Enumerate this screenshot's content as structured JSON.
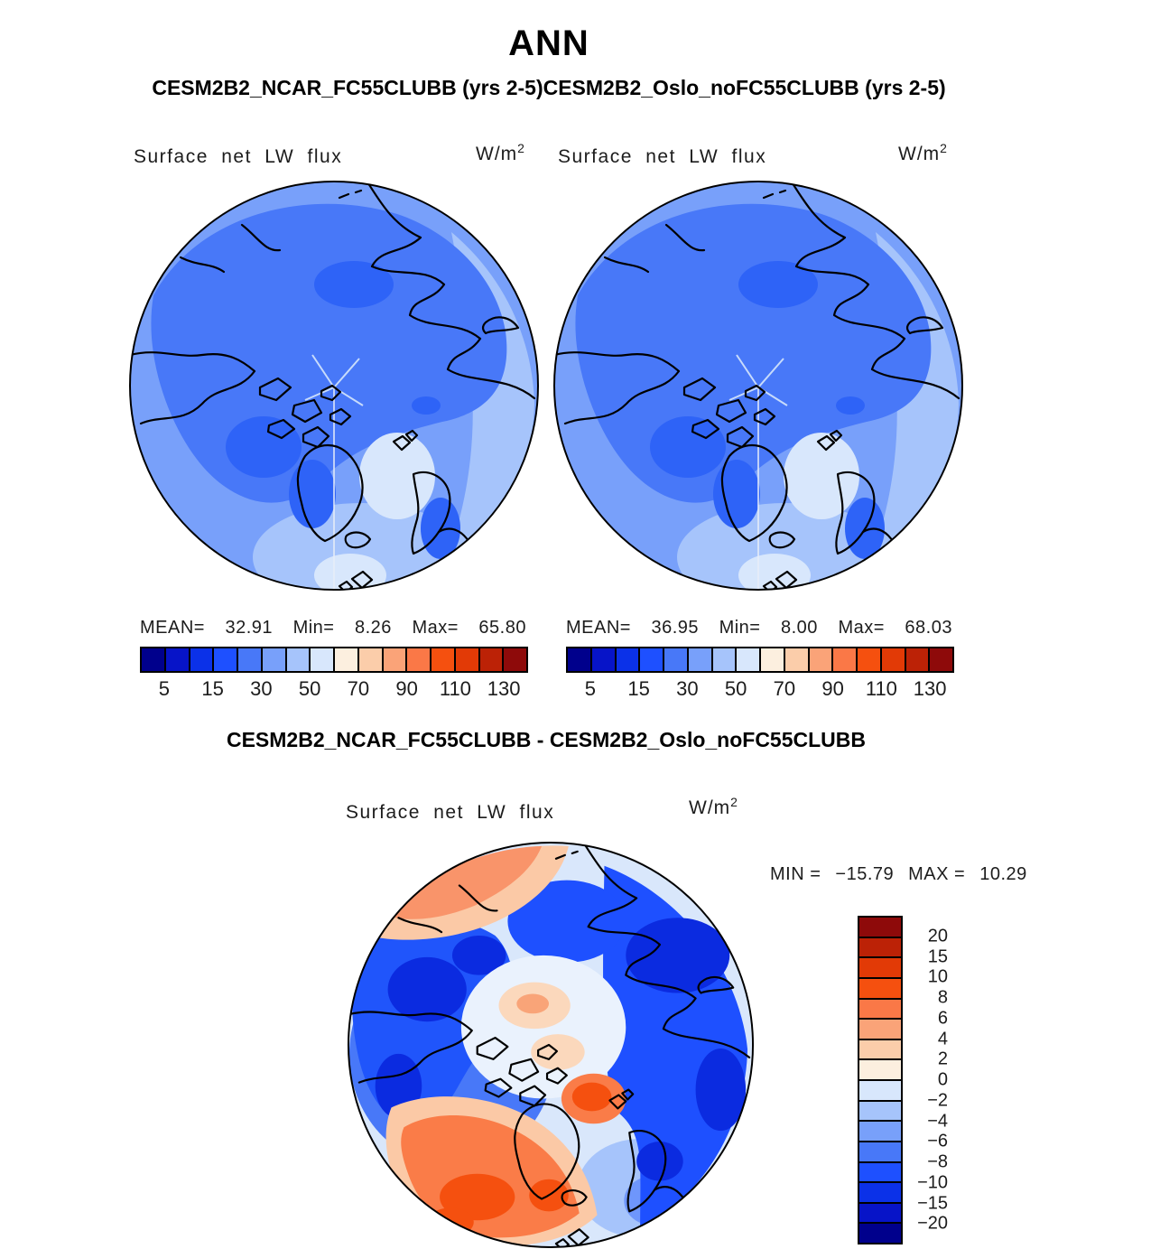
{
  "header": {
    "title": "ANN",
    "subtitle": "CESM2B2_NCAR_FC55CLUBB (yrs 2-5)CESM2B2_Oslo_noFC55CLUBB (yrs 2-5)",
    "diff_title": "CESM2B2_NCAR_FC55CLUBB - CESM2B2_Oslo_noFC55CLUBB"
  },
  "panel_left": {
    "field": "Surface net LW flux",
    "units_base": "W/m",
    "units_exp": "2",
    "mean_label": "MEAN=",
    "mean": "32.91",
    "min_label": "Min=",
    "min": "8.26",
    "max_label": "Max=",
    "max": "65.80"
  },
  "panel_right": {
    "field": "Surface net LW flux",
    "units_base": "W/m",
    "units_exp": "2",
    "mean_label": "MEAN=",
    "mean": "36.95",
    "min_label": "Min=",
    "min": "8.00",
    "max_label": "Max=",
    "max": "68.03"
  },
  "panel_diff": {
    "field": "Surface net LW flux",
    "units_base": "W/m",
    "units_exp": "2",
    "min_label": "MIN =",
    "min": "−15.79",
    "max_label": "MAX =",
    "max": "10.29"
  },
  "flux_scale": {
    "colors": [
      "#00008C",
      "#0714C8",
      "#0B31E8",
      "#1E50FF",
      "#4878F8",
      "#78A0FA",
      "#A6C4FB",
      "#D8E7FC",
      "#FCEFDF",
      "#FBCDAA",
      "#FAA378",
      "#FA7847",
      "#F5500F",
      "#E23A06",
      "#BC2206",
      "#8E0A0A"
    ],
    "tick_labels": [
      "5",
      "15",
      "30",
      "50",
      "70",
      "90",
      "110",
      "130"
    ],
    "tick_boundaries": [
      1,
      3,
      5,
      7,
      9,
      11,
      13,
      15
    ]
  },
  "diff_scale": {
    "colors": [
      "#8E0A0A",
      "#BC2206",
      "#E23A06",
      "#F5500F",
      "#FA7847",
      "#FAA378",
      "#FBCDAA",
      "#FCEFDF",
      "#D8E7FC",
      "#A6C4FB",
      "#78A0FA",
      "#4878F8",
      "#1E50FF",
      "#0B31E8",
      "#0714C8",
      "#00008C"
    ],
    "tick_labels": [
      "20",
      "15",
      "10",
      "8",
      "6",
      "4",
      "2",
      "0",
      "−2",
      "−4",
      "−6",
      "−8",
      "−10",
      "−15",
      "−20"
    ],
    "tick_boundaries": [
      1,
      2,
      3,
      4,
      5,
      6,
      7,
      8,
      9,
      10,
      11,
      12,
      13,
      14,
      15
    ]
  },
  "chart_data": [
    {
      "type": "heatmap",
      "subtype": "filled-contour-map",
      "projection": "north-polar-stereographic",
      "season": "ANN",
      "run": "CESM2B2_NCAR_FC55CLUBB (yrs 2-5)",
      "variable": "Surface net LW flux",
      "units": "W/m^2",
      "mean": 32.91,
      "min": 8.26,
      "max": 65.8,
      "colorbar_tick_labels": [
        5,
        15,
        30,
        50,
        70,
        90,
        110,
        130
      ],
      "n_color_segments": 16,
      "palette": "blue-to-red",
      "legend_position": "bottom"
    },
    {
      "type": "heatmap",
      "subtype": "filled-contour-map",
      "projection": "north-polar-stereographic",
      "season": "ANN",
      "run": "CESM2B2_Oslo_noFC55CLUBB (yrs 2-5)",
      "variable": "Surface net LW flux",
      "units": "W/m^2",
      "mean": 36.95,
      "min": 8.0,
      "max": 68.03,
      "colorbar_tick_labels": [
        5,
        15,
        30,
        50,
        70,
        90,
        110,
        130
      ],
      "n_color_segments": 16,
      "palette": "blue-to-red",
      "legend_position": "bottom"
    },
    {
      "type": "heatmap",
      "subtype": "filled-contour-difference-map",
      "projection": "north-polar-stereographic",
      "season": "ANN",
      "run": "CESM2B2_NCAR_FC55CLUBB - CESM2B2_Oslo_noFC55CLUBB",
      "variable": "Surface net LW flux",
      "units": "W/m^2",
      "min": -15.79,
      "max": 10.29,
      "colorbar_tick_labels": [
        20,
        15,
        10,
        8,
        6,
        4,
        2,
        0,
        -2,
        -4,
        -6,
        -8,
        -10,
        -15,
        -20
      ],
      "n_color_segments": 16,
      "palette": "red-to-blue",
      "legend_position": "right"
    }
  ]
}
